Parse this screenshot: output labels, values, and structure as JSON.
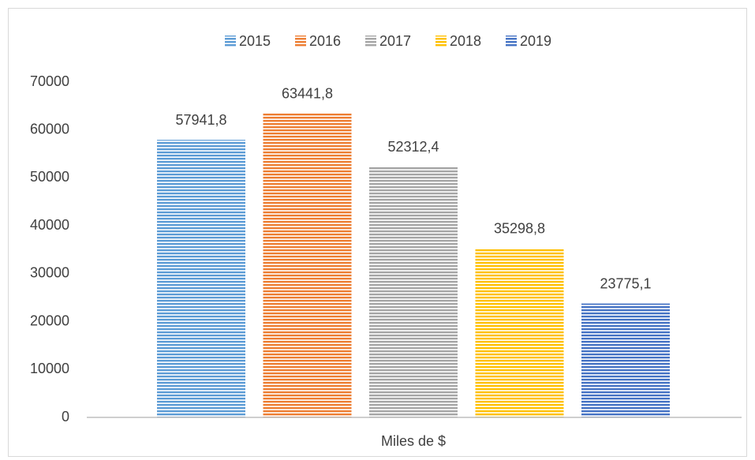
{
  "chart_data": {
    "type": "bar",
    "categories": [
      "Miles de $"
    ],
    "series": [
      {
        "name": "2015",
        "color": "#5b9bd5",
        "values": [
          57941.8
        ],
        "value_labels": [
          "57941,8"
        ]
      },
      {
        "name": "2016",
        "color": "#ed7d31",
        "values": [
          63441.8
        ],
        "value_labels": [
          "63441,8"
        ]
      },
      {
        "name": "2017",
        "color": "#a5a5a5",
        "values": [
          52312.4
        ],
        "value_labels": [
          "52312,4"
        ]
      },
      {
        "name": "2018",
        "color": "#ffc000",
        "values": [
          35298.8
        ],
        "value_labels": [
          "35298,8"
        ]
      },
      {
        "name": "2019",
        "color": "#4472c4",
        "values": [
          23775.1
        ],
        "value_labels": [
          "23775,1"
        ]
      }
    ],
    "ylim": [
      0,
      70000
    ],
    "yticks": [
      0,
      10000,
      20000,
      30000,
      40000,
      50000,
      60000,
      70000
    ],
    "grid": false,
    "legend": "top"
  }
}
